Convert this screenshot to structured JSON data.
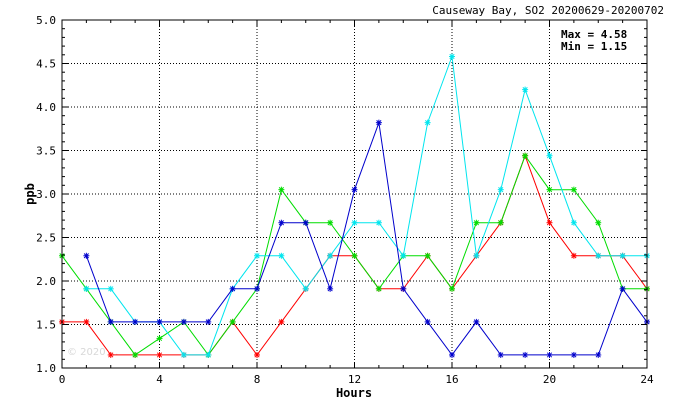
{
  "chart_data": {
    "type": "line",
    "title": "Causeway Bay, SO2 20200629-20200702",
    "xlabel": "Hours",
    "ylabel": "ppb",
    "xlim": [
      0,
      24
    ],
    "ylim": [
      1.0,
      5.0
    ],
    "x_ticks": [
      0,
      4,
      8,
      12,
      16,
      20,
      24
    ],
    "y_ticks": [
      "1.0",
      "1.5",
      "2.0",
      "2.5",
      "3.0",
      "3.5",
      "4.0",
      "4.5",
      "5.0"
    ],
    "grid": true,
    "annotations": {
      "max_label": "Max = 4.58",
      "min_label": "Min = 1.15"
    },
    "watermark": "© 2020 ...",
    "series": [
      {
        "color": "#ff0000",
        "values": [
          1.53,
          1.53,
          1.15,
          1.15,
          1.15,
          1.15,
          1.15,
          1.53,
          1.15,
          1.53,
          1.91,
          2.29,
          2.29,
          1.91,
          1.91,
          2.29,
          1.91,
          2.29,
          2.67,
          3.44,
          2.67,
          2.29,
          2.29,
          2.29,
          1.91
        ]
      },
      {
        "color": "#00dd00",
        "values": [
          2.29,
          1.91,
          1.53,
          1.15,
          1.34,
          1.53,
          1.15,
          1.53,
          1.91,
          3.05,
          2.67,
          2.67,
          2.29,
          1.91,
          2.29,
          2.29,
          1.91,
          2.67,
          2.67,
          3.44,
          3.05,
          3.05,
          2.67,
          1.91,
          1.91
        ]
      },
      {
        "color": "#00e5ee",
        "values": [
          null,
          1.91,
          1.91,
          1.53,
          1.53,
          1.15,
          1.15,
          1.91,
          2.29,
          2.29,
          1.91,
          2.29,
          2.67,
          2.67,
          2.29,
          3.82,
          4.58,
          2.29,
          3.05,
          4.2,
          3.44,
          2.67,
          2.29,
          2.29,
          2.29
        ]
      },
      {
        "color": "#0000cc",
        "values": [
          null,
          2.29,
          1.53,
          1.53,
          1.53,
          1.53,
          1.53,
          1.91,
          1.91,
          2.67,
          2.67,
          1.91,
          3.05,
          3.82,
          1.91,
          1.53,
          1.15,
          1.53,
          1.15,
          1.15,
          1.15,
          1.15,
          1.15,
          1.91,
          1.53
        ]
      }
    ]
  }
}
